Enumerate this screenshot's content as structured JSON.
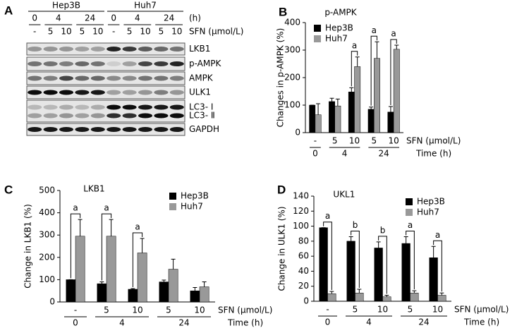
{
  "blot": {
    "panel": "A",
    "time_unit": "(h)",
    "sfn_label": "SFN (μmol/L)",
    "cell_lines": [
      {
        "name": "Hep3B",
        "times": [
          {
            "label": "0",
            "sfn": [
              "-"
            ]
          },
          {
            "label": "4",
            "sfn": [
              "5",
              "10"
            ]
          },
          {
            "label": "24",
            "sfn": [
              "5",
              "10"
            ]
          }
        ]
      },
      {
        "name": "Huh7",
        "times": [
          {
            "label": "0",
            "sfn": [
              "-"
            ]
          },
          {
            "label": "4",
            "sfn": [
              "5",
              "10"
            ]
          },
          {
            "label": "24",
            "sfn": [
              "5",
              "10"
            ]
          }
        ]
      }
    ],
    "bands": [
      "LKB1",
      "p-AMPK",
      "AMPK",
      "ULK1",
      "LC3- Ⅰ",
      "LC3- Ⅱ",
      "GAPDH"
    ]
  },
  "chart_data": [
    {
      "type": "bar",
      "panel": "B",
      "title": "p-AMPK",
      "y_label": "Changes in p-AMPK (%)",
      "x_label": "SFN (μmol/L)",
      "group_axis_label": "Time (h)",
      "groups": [
        {
          "label": "0",
          "categories": [
            "-"
          ]
        },
        {
          "label": "4",
          "categories": [
            "5",
            "10"
          ]
        },
        {
          "label": "24",
          "categories": [
            "5",
            "10"
          ]
        }
      ],
      "series": [
        {
          "name": "Hep3B",
          "color": "#000000",
          "values": [
            100,
            113,
            148,
            85,
            75
          ],
          "errors": [
            0,
            12,
            15,
            8,
            20
          ]
        },
        {
          "name": "Huh7",
          "color": "#999999",
          "values": [
            65,
            97,
            240,
            270,
            303
          ],
          "errors": [
            40,
            25,
            35,
            60,
            15
          ]
        }
      ],
      "significance": [
        null,
        null,
        "a",
        "a",
        "a"
      ],
      "ylim": [
        0,
        400
      ],
      "yticks": [
        0,
        100,
        200,
        300,
        400
      ],
      "legend": "upper left"
    },
    {
      "type": "bar",
      "panel": "C",
      "title": "LKB1",
      "y_label": "Change in LKB1 (%)",
      "x_label": "SFN (μmol/L)",
      "group_axis_label": "Time (h)",
      "groups": [
        {
          "label": "0",
          "categories": [
            "-"
          ]
        },
        {
          "label": "4",
          "categories": [
            "5",
            "10"
          ]
        },
        {
          "label": "24",
          "categories": [
            "5",
            "10"
          ]
        }
      ],
      "series": [
        {
          "name": "Hep3B",
          "color": "#000000",
          "values": [
            100,
            82,
            57,
            90,
            50
          ],
          "errors": [
            0,
            8,
            3,
            8,
            15
          ]
        },
        {
          "name": "Huh7",
          "color": "#999999",
          "values": [
            295,
            295,
            220,
            147,
            68
          ],
          "errors": [
            75,
            75,
            65,
            45,
            22
          ]
        }
      ],
      "significance": [
        "a",
        "a",
        "a",
        null,
        null
      ],
      "ylim": [
        0,
        500
      ],
      "yticks": [
        0,
        100,
        200,
        300,
        400,
        500
      ],
      "legend": "upper right"
    },
    {
      "type": "bar",
      "panel": "D",
      "title": "UKL1",
      "y_label": "Change in ULK1 (%)",
      "x_label": "SFN (μmol/L)",
      "group_axis_label": "Time (h)",
      "groups": [
        {
          "label": "0",
          "categories": [
            "-"
          ]
        },
        {
          "label": "4",
          "categories": [
            "5",
            "10"
          ]
        },
        {
          "label": "24",
          "categories": [
            "5",
            "10"
          ]
        }
      ],
      "series": [
        {
          "name": "Hep3B",
          "color": "#000000",
          "values": [
            98,
            80,
            71,
            77,
            58
          ],
          "errors": [
            0,
            6,
            8,
            9,
            15
          ]
        },
        {
          "name": "Huh7",
          "color": "#999999",
          "values": [
            10,
            11,
            6,
            11,
            8
          ],
          "errors": [
            3,
            5,
            2,
            3,
            3
          ]
        }
      ],
      "significance": [
        "a",
        "b",
        "b",
        "a",
        "a"
      ],
      "ylim": [
        0,
        140
      ],
      "yticks": [
        0,
        20,
        40,
        60,
        80,
        100,
        120,
        140
      ],
      "legend": "upper right"
    }
  ]
}
